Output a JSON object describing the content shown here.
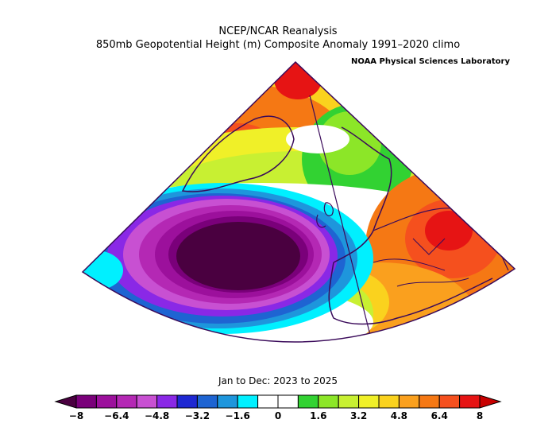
{
  "title_line1": "NCEP/NCAR Reanalysis",
  "title_line2": "850mb Geopotential Height (m) Composite Anomaly 1991–2020 climo",
  "credit": "NOAA Physical Sciences Laboratory",
  "period": "Jan to Dec: 2023 to 2025",
  "colorbar": {
    "min": -8,
    "max": 8,
    "step": 0.8,
    "tick_labels": [
      "−8",
      "−6.4",
      "−4.8",
      "−3.2",
      "−1.6",
      "0",
      "1.6",
      "3.2",
      "4.8",
      "6.4",
      "8"
    ],
    "colors": [
      "#4a0040",
      "#7a007a",
      "#9c109c",
      "#b428b4",
      "#c850d2",
      "#8a28e6",
      "#1e28d2",
      "#1e64d2",
      "#1e96dc",
      "#00f0ff",
      "#ffffff",
      "#ffffff",
      "#32d232",
      "#8ce628",
      "#c8f032",
      "#f0f028",
      "#fad21e",
      "#faa01e",
      "#f57814",
      "#f5501e",
      "#e61414",
      "#c80000"
    ]
  },
  "map": {
    "projection": "conic",
    "region": "North Atlantic and Europe",
    "features": [
      {
        "name": "Strong negative anomaly center",
        "location": "Central North Atlantic",
        "value_m": -8
      },
      {
        "name": "Positive anomaly",
        "location": "Greenland",
        "value_m": 5
      },
      {
        "name": "Positive anomaly",
        "location": "Southeastern Europe",
        "value_m": 7
      },
      {
        "name": "Positive anomaly",
        "location": "Northwest Africa / Iberia",
        "value_m": 5
      }
    ]
  }
}
